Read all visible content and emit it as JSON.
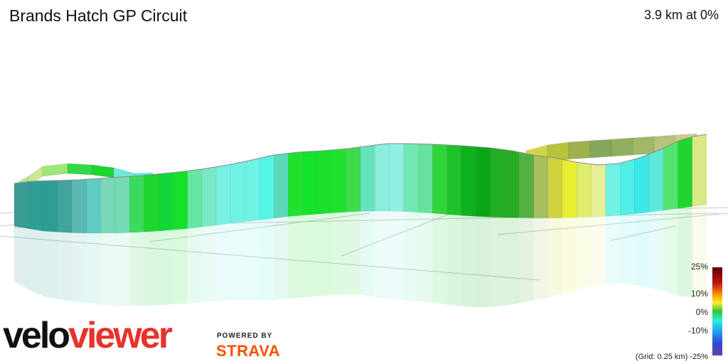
{
  "header": {
    "title": "Brands Hatch GP Circuit",
    "summary": "3.9 km at 0%"
  },
  "legend": {
    "max_label": "25%",
    "label_10": "10%",
    "label_0": "0%",
    "label_m10": "-10%",
    "grid_note": "(Grid: 0.25 km) -25%"
  },
  "branding": {
    "logo_part1": "velo",
    "logo_part2": "viewer",
    "powered_by": "POWERED BY",
    "strava": "STRAVA"
  },
  "profile": {
    "colors": [
      "#3a9c93",
      "#2e9d95",
      "#2e9d95",
      "#42a59d",
      "#5ab8b0",
      "#60cbc3",
      "#7ad8b8",
      "#74dbb4",
      "#3ada5c",
      "#1fd52f",
      "#12d836",
      "#17e02b",
      "#64e79f",
      "#7ae7c5",
      "#78efe2",
      "#6ff2e4",
      "#6ff2e4",
      "#55f5e6",
      "#5cd9b8",
      "#1fe22f",
      "#14e32c",
      "#1be02a",
      "#1fe22f",
      "#3ddc4b",
      "#66e2bd",
      "#8aeedc",
      "#8fefe1",
      "#71e8b4",
      "#66e29e",
      "#2fd33a",
      "#1ec229",
      "#0fb11e",
      "#0aa615",
      "#22ae24",
      "#27ad24",
      "#55b042",
      "#a6be5d",
      "#cfd23e",
      "#e7ee31",
      "#e0ec6c",
      "#e4ef98",
      "#6ff2e4",
      "#4fefe6",
      "#3ae8ea",
      "#5de8d9",
      "#52e46e",
      "#1fd52f",
      "#d9e985"
    ]
  }
}
